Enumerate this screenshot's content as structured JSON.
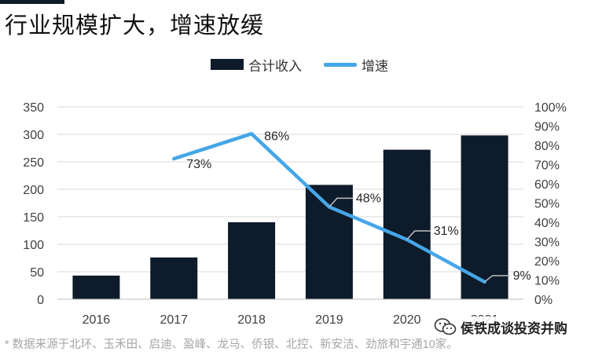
{
  "title": "行业规模扩大，增速放缓",
  "legend": {
    "bar_label": "合计收入",
    "line_label": "增速"
  },
  "footnote": "* 数据来源于北环、玉禾田、启迪、盈峰、龙马、侨银、北控、新安洁、劲旅和宇通10家。",
  "watermark": {
    "text": "侯铁成谈投资并购",
    "icon": "wechat-icon"
  },
  "colors": {
    "bar": "#0d1b2a",
    "line": "#45a6e8",
    "grid": "#d9d9d9",
    "label_leader": "#bfbfbf"
  },
  "chart_data": {
    "type": "bar",
    "categories": [
      "2016",
      "2017",
      "2018",
      "2019",
      "2020",
      "2021"
    ],
    "series": [
      {
        "name": "合计收入",
        "type": "bar",
        "axis": "left",
        "values": [
          43,
          76,
          140,
          208,
          272,
          298
        ]
      },
      {
        "name": "增速",
        "type": "line",
        "axis": "right",
        "values": [
          null,
          0.73,
          0.86,
          0.48,
          0.31,
          0.09
        ],
        "labels": [
          "",
          "73%",
          "86%",
          "48%",
          "31%",
          "9%"
        ]
      }
    ],
    "ylim": [
      0,
      350
    ],
    "yticks": [
      0,
      50,
      100,
      150,
      200,
      250,
      300,
      350
    ],
    "y2lim": [
      0,
      1
    ],
    "y2ticks": [
      "0%",
      "10%",
      "20%",
      "30%",
      "40%",
      "50%",
      "60%",
      "70%",
      "80%",
      "90%",
      "100%"
    ],
    "grid": true,
    "legend_position": "top-center"
  }
}
